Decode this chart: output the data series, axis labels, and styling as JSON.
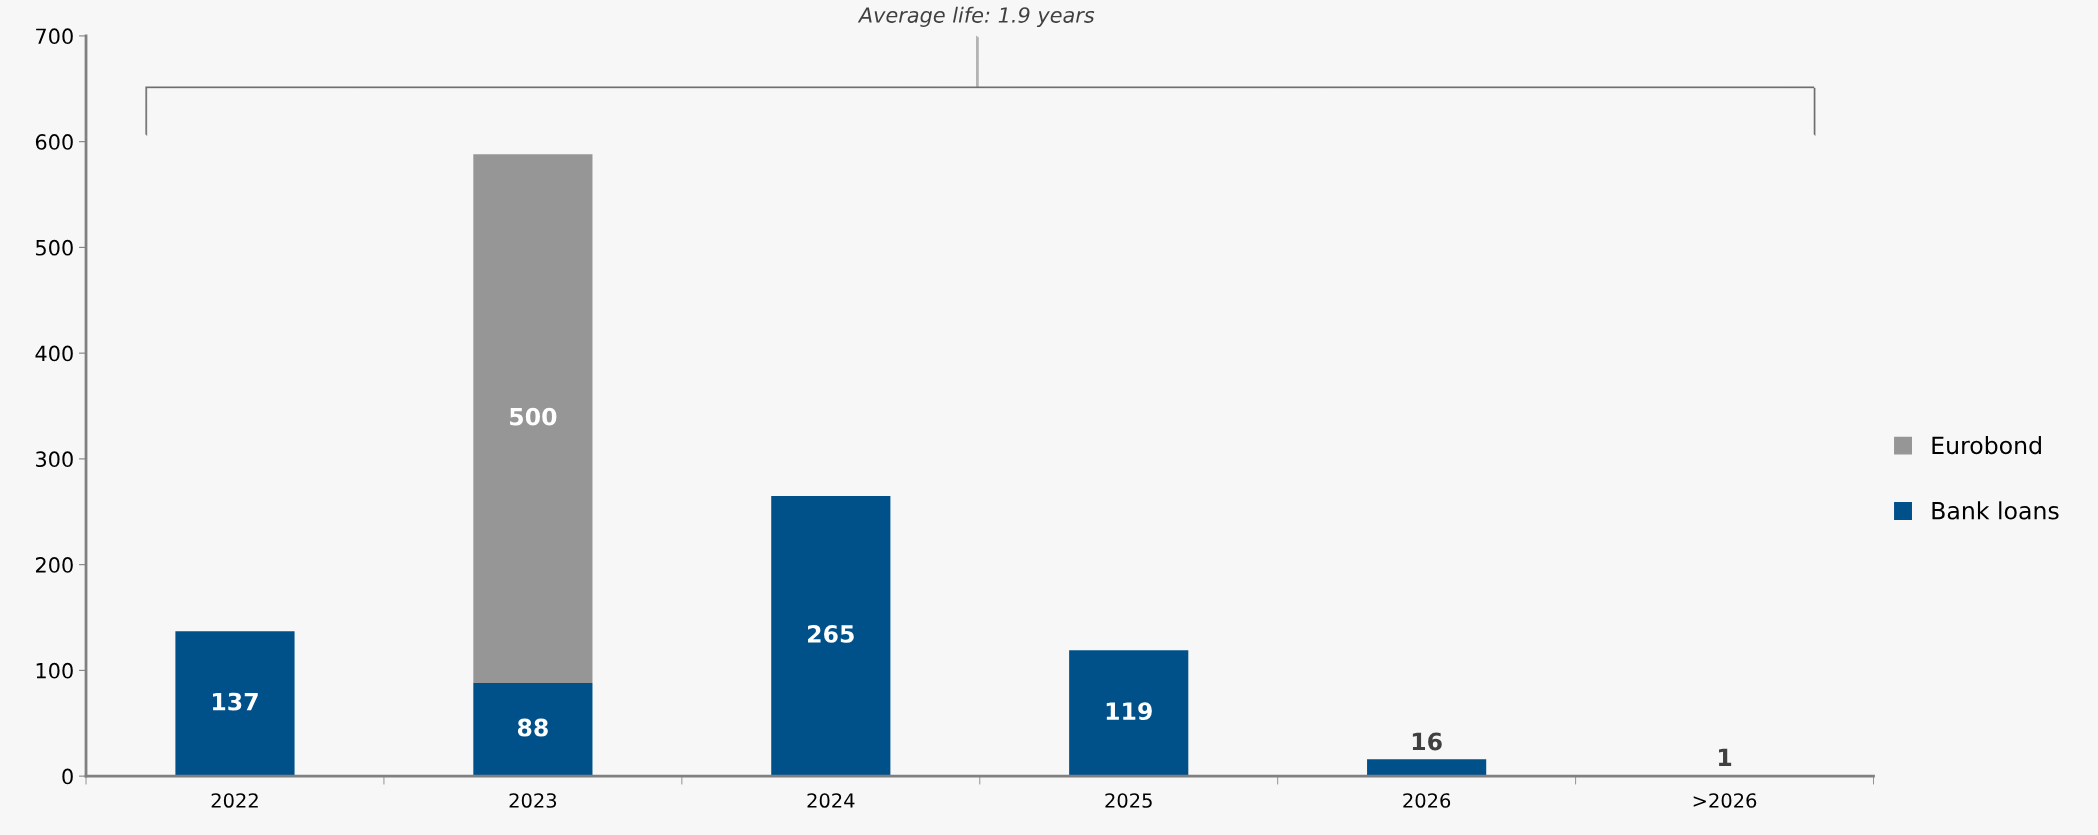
{
  "chart_data": {
    "type": "bar",
    "stacked": true,
    "categories": [
      "2022",
      "2023",
      "2024",
      "2025",
      "2026",
      ">2026"
    ],
    "series": [
      {
        "name": "Bank loans",
        "color": "#00508a",
        "values": [
          137,
          88,
          265,
          119,
          16,
          1
        ]
      },
      {
        "name": "Eurobond",
        "color": "#969696",
        "values": [
          null,
          500,
          null,
          null,
          null,
          null
        ]
      }
    ],
    "ylim": [
      0,
      700
    ],
    "yticks": [
      0,
      100,
      200,
      300,
      400,
      500,
      600,
      700
    ],
    "grid": false,
    "legend": "right",
    "data_labels": true,
    "annotations": [
      "Average life: 1.9 years"
    ]
  }
}
